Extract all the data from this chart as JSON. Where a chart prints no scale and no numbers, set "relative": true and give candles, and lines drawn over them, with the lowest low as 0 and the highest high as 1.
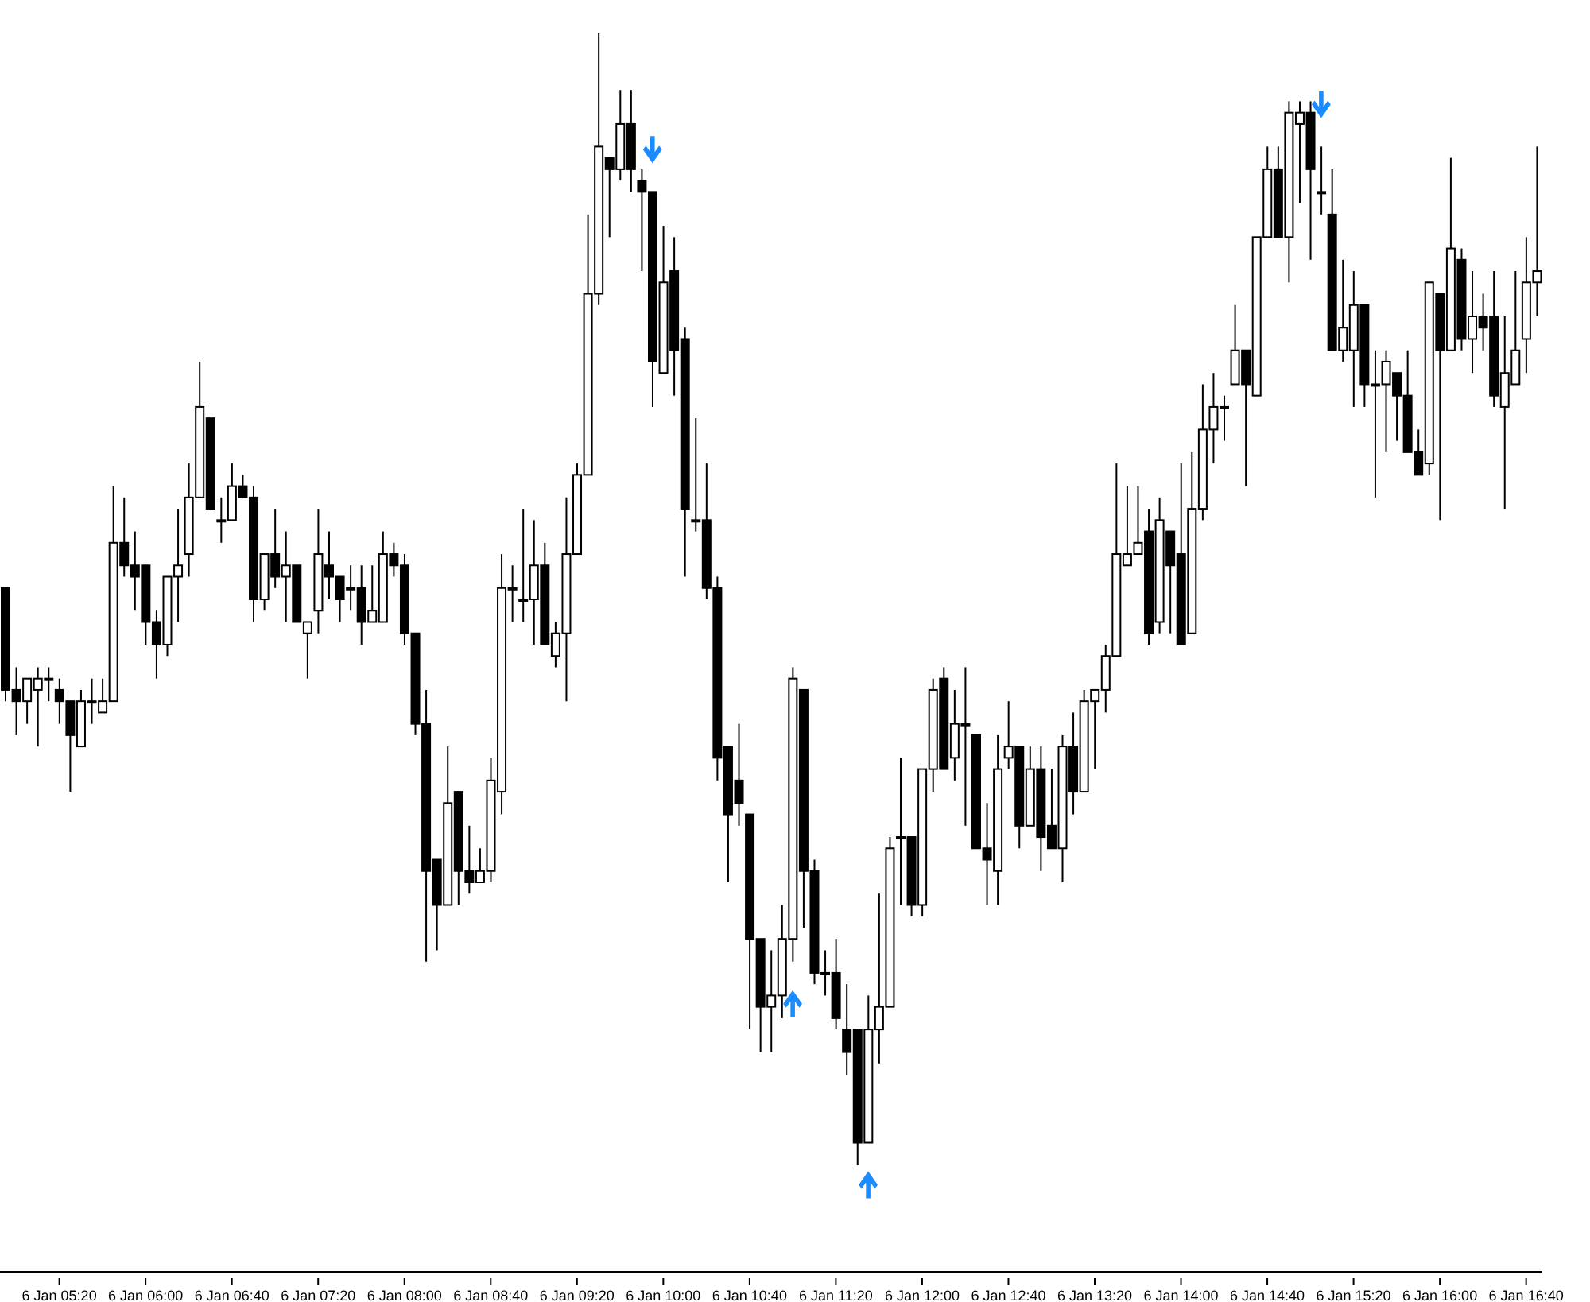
{
  "chart_data": {
    "type": "candlestick",
    "relative": true,
    "color": "#000000",
    "categories": [
      null,
      null,
      null,
      null,
      null,
      "6 Jan 05:20",
      null,
      null,
      null,
      null,
      null,
      null,
      null,
      "6 Jan 06:00",
      null,
      null,
      null,
      null,
      null,
      null,
      null,
      "6 Jan 06:40",
      null,
      null,
      null,
      null,
      null,
      null,
      null,
      "6 Jan 07:20",
      null,
      null,
      null,
      null,
      null,
      null,
      null,
      "6 Jan 08:00",
      null,
      null,
      null,
      null,
      null,
      null,
      null,
      "6 Jan 08:40",
      null,
      null,
      null,
      null,
      null,
      null,
      null,
      "6 Jan 09:20",
      null,
      null,
      null,
      null,
      null,
      null,
      null,
      "6 Jan 10:00",
      null,
      null,
      null,
      null,
      null,
      null,
      null,
      "6 Jan 10:40",
      null,
      null,
      null,
      null,
      null,
      null,
      null,
      "6 Jan 11:20",
      null,
      null,
      null,
      null,
      null,
      null,
      null,
      "6 Jan 12:00",
      null,
      null,
      null,
      null,
      null,
      null,
      null,
      "6 Jan 12:40",
      null,
      null,
      null,
      null,
      null,
      null,
      null,
      "6 Jan 13:20",
      null,
      null,
      null,
      null,
      null,
      null,
      null,
      "6 Jan 14:00",
      null,
      null,
      null,
      null,
      null,
      null,
      null,
      "6 Jan 14:40",
      null,
      null,
      null,
      null,
      null,
      null,
      null,
      "6 Jan 15:20",
      null,
      null,
      null,
      null,
      null,
      null,
      null,
      "6 Jan 16:00",
      null,
      null,
      null,
      null,
      null,
      null,
      null,
      "6 Jan 16:40",
      null
    ],
    "ohlc": [
      [
        0.51,
        0.51,
        0.41,
        0.42
      ],
      [
        0.42,
        0.44,
        0.38,
        0.41
      ],
      [
        0.41,
        0.43,
        0.39,
        0.43
      ],
      [
        0.42,
        0.44,
        0.37,
        0.43
      ],
      [
        0.43,
        0.44,
        0.41,
        0.43
      ],
      [
        0.42,
        0.43,
        0.39,
        0.41
      ],
      [
        0.41,
        0.41,
        0.33,
        0.38
      ],
      [
        0.37,
        0.42,
        0.37,
        0.41
      ],
      [
        0.41,
        0.43,
        0.39,
        0.41
      ],
      [
        0.4,
        0.43,
        0.4,
        0.41
      ],
      [
        0.41,
        0.6,
        0.41,
        0.55
      ],
      [
        0.55,
        0.59,
        0.52,
        0.53
      ],
      [
        0.53,
        0.56,
        0.49,
        0.52
      ],
      [
        0.53,
        0.53,
        0.46,
        0.48
      ],
      [
        0.48,
        0.49,
        0.43,
        0.46
      ],
      [
        0.46,
        0.52,
        0.45,
        0.52
      ],
      [
        0.52,
        0.58,
        0.48,
        0.53
      ],
      [
        0.54,
        0.62,
        0.52,
        0.59
      ],
      [
        0.59,
        0.71,
        0.59,
        0.67
      ],
      [
        0.66,
        0.66,
        0.58,
        0.58
      ],
      [
        0.57,
        0.59,
        0.55,
        0.57
      ],
      [
        0.57,
        0.62,
        0.57,
        0.6
      ],
      [
        0.6,
        0.61,
        0.59,
        0.59
      ],
      [
        0.59,
        0.6,
        0.48,
        0.5
      ],
      [
        0.5,
        0.54,
        0.49,
        0.54
      ],
      [
        0.54,
        0.58,
        0.51,
        0.52
      ],
      [
        0.52,
        0.56,
        0.48,
        0.53
      ],
      [
        0.53,
        0.53,
        0.48,
        0.48
      ],
      [
        0.47,
        0.48,
        0.43,
        0.48
      ],
      [
        0.49,
        0.58,
        0.47,
        0.54
      ],
      [
        0.53,
        0.56,
        0.5,
        0.52
      ],
      [
        0.52,
        0.52,
        0.48,
        0.5
      ],
      [
        0.51,
        0.53,
        0.49,
        0.51
      ],
      [
        0.51,
        0.53,
        0.46,
        0.48
      ],
      [
        0.48,
        0.53,
        0.48,
        0.49
      ],
      [
        0.48,
        0.56,
        0.48,
        0.54
      ],
      [
        0.54,
        0.55,
        0.52,
        0.53
      ],
      [
        0.53,
        0.54,
        0.46,
        0.47
      ],
      [
        0.47,
        0.47,
        0.38,
        0.39
      ],
      [
        0.39,
        0.42,
        0.18,
        0.26
      ],
      [
        0.27,
        0.27,
        0.19,
        0.23
      ],
      [
        0.23,
        0.37,
        0.23,
        0.32
      ],
      [
        0.33,
        0.33,
        0.23,
        0.26
      ],
      [
        0.26,
        0.3,
        0.24,
        0.25
      ],
      [
        0.25,
        0.28,
        0.25,
        0.26
      ],
      [
        0.26,
        0.36,
        0.25,
        0.34
      ],
      [
        0.33,
        0.54,
        0.31,
        0.51
      ],
      [
        0.51,
        0.53,
        0.48,
        0.51
      ],
      [
        0.5,
        0.58,
        0.48,
        0.5
      ],
      [
        0.5,
        0.57,
        0.46,
        0.53
      ],
      [
        0.53,
        0.55,
        0.46,
        0.46
      ],
      [
        0.45,
        0.48,
        0.44,
        0.47
      ],
      [
        0.47,
        0.59,
        0.41,
        0.54
      ],
      [
        0.54,
        0.62,
        0.54,
        0.61
      ],
      [
        0.61,
        0.84,
        0.61,
        0.77
      ],
      [
        0.77,
        1,
        0.76,
        0.9
      ],
      [
        0.89,
        0.89,
        0.82,
        0.88
      ],
      [
        0.88,
        0.95,
        0.87,
        0.92
      ],
      [
        0.92,
        0.95,
        0.86,
        0.88
      ],
      [
        0.87,
        0.88,
        0.79,
        0.86
      ],
      [
        0.86,
        0.86,
        0.67,
        0.71
      ],
      [
        0.7,
        0.83,
        0.7,
        0.78
      ],
      [
        0.79,
        0.82,
        0.68,
        0.72
      ],
      [
        0.73,
        0.74,
        0.52,
        0.58
      ],
      [
        0.57,
        0.66,
        0.56,
        0.57
      ],
      [
        0.57,
        0.62,
        0.5,
        0.51
      ],
      [
        0.51,
        0.52,
        0.34,
        0.36
      ],
      [
        0.37,
        0.37,
        0.25,
        0.31
      ],
      [
        0.34,
        0.39,
        0.3,
        0.32
      ],
      [
        0.31,
        0.31,
        0.12,
        0.2
      ],
      [
        0.2,
        0.2,
        0.1,
        0.14
      ],
      [
        0.14,
        0.19,
        0.1,
        0.15
      ],
      [
        0.15,
        0.23,
        0.13,
        0.2
      ],
      [
        0.2,
        0.44,
        0.18,
        0.43
      ],
      [
        0.42,
        0.42,
        0.21,
        0.26
      ],
      [
        0.26,
        0.27,
        0.16,
        0.17
      ],
      [
        0.17,
        0.19,
        0.15,
        0.17
      ],
      [
        0.17,
        0.2,
        0.12,
        0.13
      ],
      [
        0.12,
        0.16,
        0.08,
        0.1
      ],
      [
        0.12,
        0.12,
        0,
        0.02
      ],
      [
        0.02,
        0.15,
        0.02,
        0.12
      ],
      [
        0.12,
        0.24,
        0.09,
        0.14
      ],
      [
        0.14,
        0.29,
        0.14,
        0.28
      ],
      [
        0.29,
        0.36,
        0.23,
        0.29
      ],
      [
        0.29,
        0.29,
        0.22,
        0.23
      ],
      [
        0.23,
        0.35,
        0.22,
        0.35
      ],
      [
        0.35,
        0.43,
        0.33,
        0.42
      ],
      [
        0.43,
        0.44,
        0.35,
        0.35
      ],
      [
        0.36,
        0.42,
        0.34,
        0.39
      ],
      [
        0.39,
        0.44,
        0.3,
        0.39
      ],
      [
        0.38,
        0.38,
        0.28,
        0.28
      ],
      [
        0.28,
        0.32,
        0.23,
        0.27
      ],
      [
        0.26,
        0.38,
        0.23,
        0.35
      ],
      [
        0.36,
        0.41,
        0.35,
        0.37
      ],
      [
        0.37,
        0.37,
        0.28,
        0.3
      ],
      [
        0.3,
        0.37,
        0.3,
        0.35
      ],
      [
        0.35,
        0.37,
        0.26,
        0.29
      ],
      [
        0.3,
        0.35,
        0.28,
        0.28
      ],
      [
        0.28,
        0.38,
        0.25,
        0.37
      ],
      [
        0.37,
        0.4,
        0.31,
        0.33
      ],
      [
        0.33,
        0.42,
        0.33,
        0.41
      ],
      [
        0.41,
        0.42,
        0.35,
        0.42
      ],
      [
        0.42,
        0.46,
        0.4,
        0.45
      ],
      [
        0.45,
        0.62,
        0.45,
        0.54
      ],
      [
        0.53,
        0.6,
        0.53,
        0.54
      ],
      [
        0.54,
        0.6,
        0.54,
        0.55
      ],
      [
        0.56,
        0.58,
        0.46,
        0.47
      ],
      [
        0.48,
        0.59,
        0.47,
        0.57
      ],
      [
        0.56,
        0.56,
        0.47,
        0.53
      ],
      [
        0.54,
        0.62,
        0.46,
        0.46
      ],
      [
        0.47,
        0.63,
        0.47,
        0.58
      ],
      [
        0.58,
        0.69,
        0.57,
        0.65
      ],
      [
        0.65,
        0.7,
        0.62,
        0.67
      ],
      [
        0.67,
        0.68,
        0.64,
        0.67
      ],
      [
        0.69,
        0.76,
        0.69,
        0.72
      ],
      [
        0.72,
        0.72,
        0.6,
        0.69
      ],
      [
        0.68,
        0.82,
        0.68,
        0.82
      ],
      [
        0.82,
        0.9,
        0.82,
        0.88
      ],
      [
        0.88,
        0.9,
        0.82,
        0.82
      ],
      [
        0.82,
        0.94,
        0.78,
        0.93
      ],
      [
        0.92,
        0.94,
        0.85,
        0.93
      ],
      [
        0.93,
        0.94,
        0.8,
        0.88
      ],
      [
        0.86,
        0.9,
        0.84,
        0.86
      ],
      [
        0.84,
        0.88,
        0.72,
        0.72
      ],
      [
        0.72,
        0.8,
        0.71,
        0.74
      ],
      [
        0.72,
        0.79,
        0.67,
        0.76
      ],
      [
        0.76,
        0.76,
        0.67,
        0.69
      ],
      [
        0.69,
        0.72,
        0.59,
        0.69
      ],
      [
        0.69,
        0.72,
        0.63,
        0.71
      ],
      [
        0.7,
        0.7,
        0.64,
        0.68
      ],
      [
        0.68,
        0.72,
        0.63,
        0.63
      ],
      [
        0.63,
        0.65,
        0.61,
        0.61
      ],
      [
        0.62,
        0.78,
        0.61,
        0.78
      ],
      [
        0.77,
        0.77,
        0.57,
        0.72
      ],
      [
        0.72,
        0.89,
        0.72,
        0.81
      ],
      [
        0.8,
        0.81,
        0.72,
        0.73
      ],
      [
        0.73,
        0.79,
        0.7,
        0.75
      ],
      [
        0.75,
        0.77,
        0.72,
        0.74
      ],
      [
        0.75,
        0.79,
        0.67,
        0.68
      ],
      [
        0.67,
        0.75,
        0.58,
        0.7
      ],
      [
        0.69,
        0.79,
        0.69,
        0.72
      ],
      [
        0.73,
        0.82,
        0.7,
        0.78
      ],
      [
        0.78,
        0.9,
        0.75,
        0.79
      ]
    ]
  }
}
